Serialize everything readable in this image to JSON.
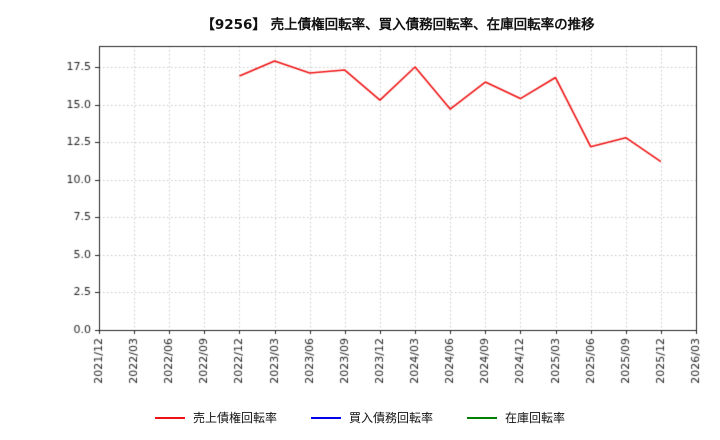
{
  "title": "【9256】 売上債権回転率、買入債務回転率、在庫回転率の推移",
  "chart_data": {
    "type": "line",
    "title": "【9256】 売上債権回転率、買入債務回転率、在庫回転率の推移",
    "xlabel": "",
    "ylabel": "",
    "x": [
      "2021/12",
      "2022/03",
      "2022/06",
      "2022/09",
      "2022/12",
      "2023/03",
      "2023/06",
      "2023/09",
      "2023/12",
      "2024/03",
      "2024/06",
      "2024/09",
      "2024/12",
      "2025/03",
      "2025/06",
      "2025/09",
      "2025/12",
      "2026/03"
    ],
    "ylim": [
      0,
      18.9
    ],
    "yticks": [
      0.0,
      2.5,
      5.0,
      7.5,
      10.0,
      12.5,
      15.0,
      17.5
    ],
    "grid": true,
    "grid_style": "dotted",
    "legend_position": "bottom",
    "axis_color": "#262626",
    "grid_color": "#c9c9c9",
    "series": [
      {
        "name": "売上債権回転率",
        "color": "#ee1111",
        "x_start_index": 4,
        "values": [
          16.9,
          17.9,
          17.1,
          17.3,
          15.3,
          17.5,
          14.7,
          16.5,
          15.4,
          16.8,
          12.2,
          12.8,
          11.2
        ]
      },
      {
        "name": "買入債務回転率",
        "color": "#0000ee",
        "x_start_index": 0,
        "values": []
      },
      {
        "name": "在庫回転率",
        "color": "#008000",
        "x_start_index": 0,
        "values": []
      }
    ]
  }
}
